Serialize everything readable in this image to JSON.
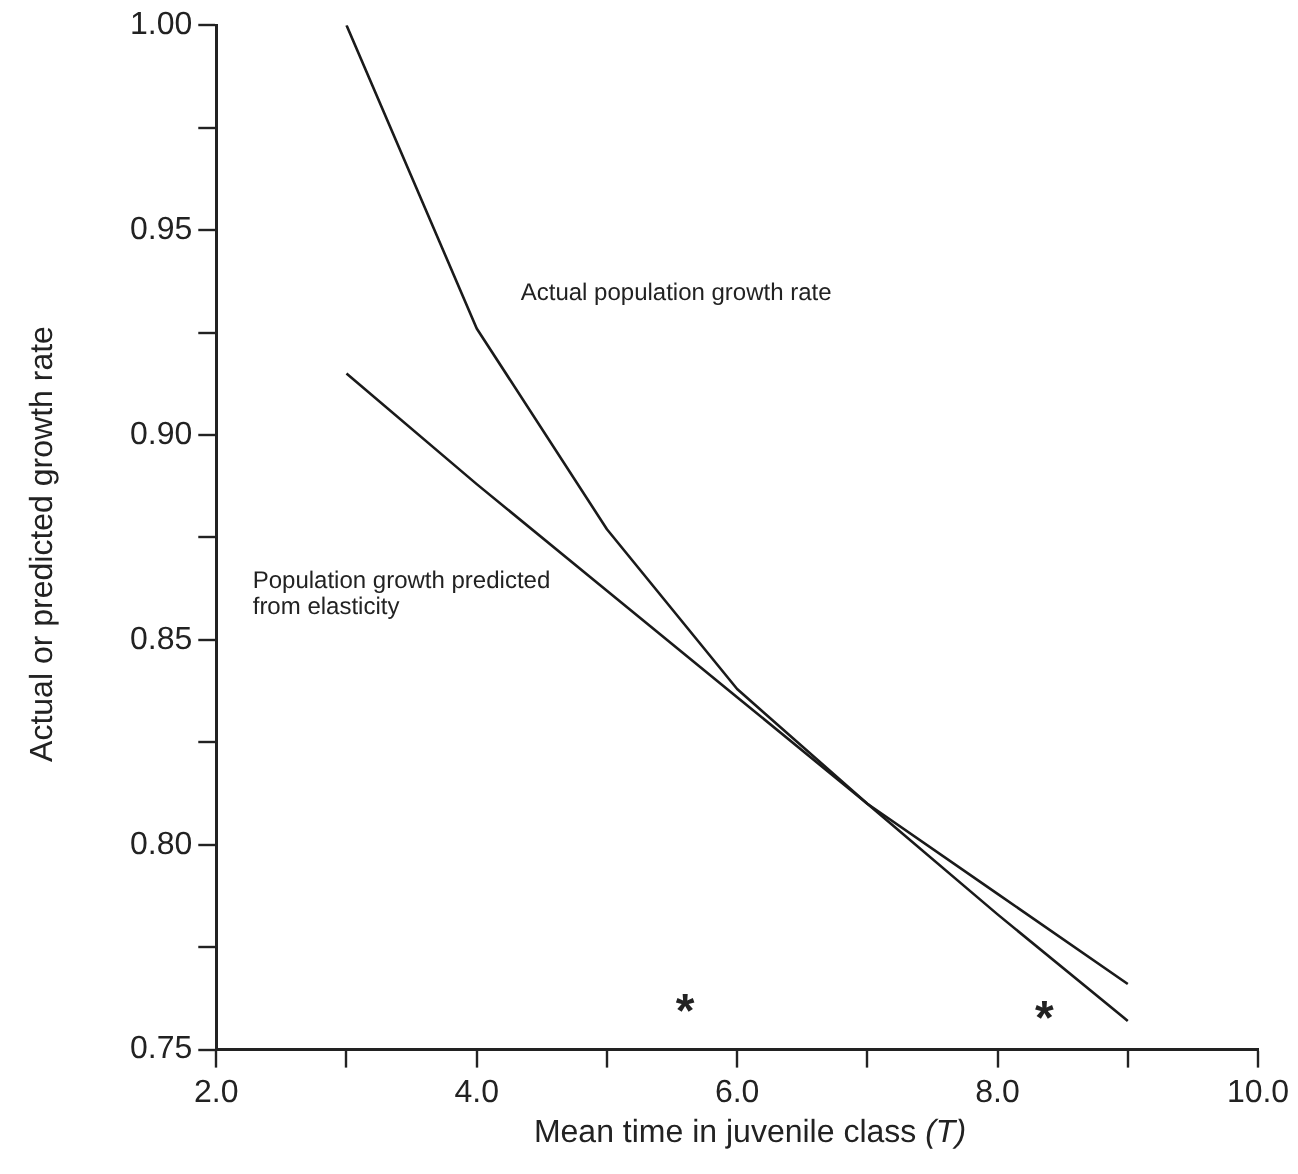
{
  "chart_data": {
    "type": "line",
    "xlabel": "Mean time in juvenile class (T)",
    "ylabel": "Actual or predicted growth rate",
    "x": [
      3,
      4,
      5,
      6,
      7,
      8,
      9
    ],
    "series": [
      {
        "name": "Actual population growth rate",
        "color": "#1a1a1a",
        "values": [
          1.0,
          0.926,
          0.877,
          0.838,
          0.81,
          0.783,
          0.757
        ]
      },
      {
        "name": "Population growth predicted from elasticity",
        "color": "#1a1a1a",
        "values": [
          0.915,
          0.888,
          0.862,
          0.836,
          0.81,
          0.788,
          0.766
        ]
      }
    ],
    "xlim": [
      2,
      10
    ],
    "xticks": [
      {
        "value": 2,
        "label": "2.0"
      },
      {
        "value": 3,
        "label": null
      },
      {
        "value": 4,
        "label": "4.0"
      },
      {
        "value": 5,
        "label": null
      },
      {
        "value": 6,
        "label": "6.0"
      },
      {
        "value": 7,
        "label": null
      },
      {
        "value": 8,
        "label": "8.0"
      },
      {
        "value": 9,
        "label": null
      },
      {
        "value": 10,
        "label": "10.0"
      }
    ],
    "ylim": [
      0.75,
      1.0
    ],
    "yticks": [
      {
        "value": 0.75,
        "label": "0.75"
      },
      {
        "value": 0.775,
        "label": null
      },
      {
        "value": 0.8,
        "label": "0.80"
      },
      {
        "value": 0.825,
        "label": null
      },
      {
        "value": 0.85,
        "label": "0.85"
      },
      {
        "value": 0.875,
        "label": null
      },
      {
        "value": 0.9,
        "label": "0.90"
      },
      {
        "value": 0.925,
        "label": null
      },
      {
        "value": 0.95,
        "label": "0.95"
      },
      {
        "value": 0.975,
        "label": null
      },
      {
        "value": 1.0,
        "label": "1.00"
      }
    ],
    "grid": false,
    "legend": false,
    "marker": "none",
    "line_style": "solid",
    "annotations": [
      "*",
      "*"
    ]
  }
}
